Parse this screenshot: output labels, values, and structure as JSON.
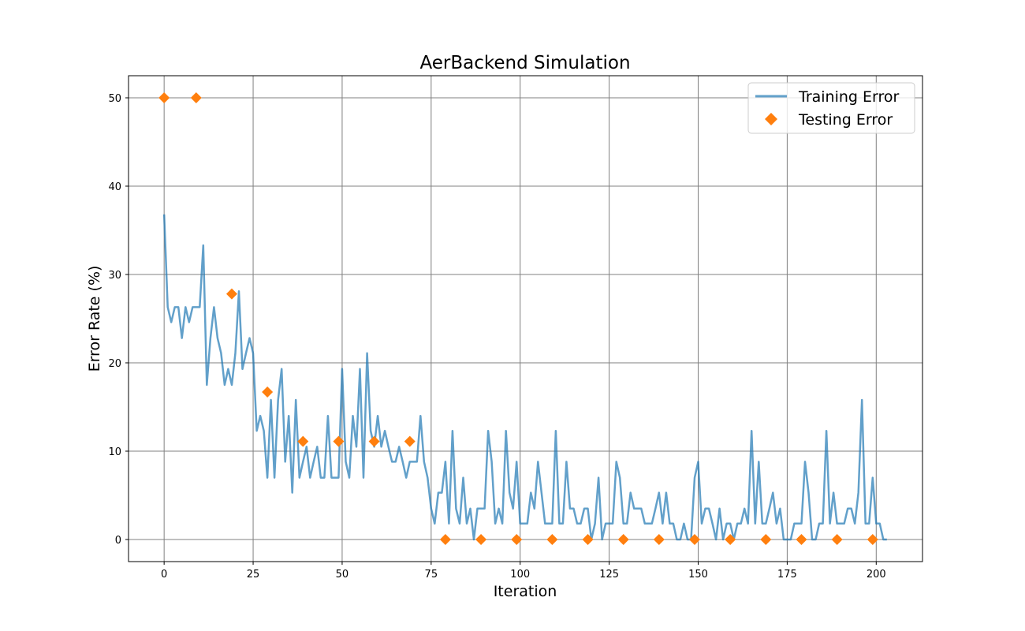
{
  "chart_data": {
    "type": "line",
    "title": "AerBackend Simulation",
    "xlabel": "Iteration",
    "ylabel": "Error Rate (%)",
    "xlim": [
      -10,
      213
    ],
    "ylim": [
      -2.5,
      52.5
    ],
    "xticks": [
      0,
      25,
      50,
      75,
      100,
      125,
      150,
      175,
      200
    ],
    "yticks": [
      0,
      10,
      20,
      30,
      40,
      50
    ],
    "grid": true,
    "legend": "top-right",
    "series": [
      {
        "name": "Training Error",
        "style": "line",
        "color": "#1f77b4",
        "x": [
          0,
          1,
          2,
          3,
          4,
          5,
          6,
          7,
          8,
          9,
          10,
          11,
          12,
          13,
          14,
          15,
          16,
          17,
          18,
          19,
          20,
          21,
          22,
          23,
          24,
          25,
          26,
          27,
          28,
          29,
          30,
          31,
          32,
          33,
          34,
          35,
          36,
          37,
          38,
          39,
          40,
          41,
          42,
          43,
          44,
          45,
          46,
          47,
          48,
          49,
          50,
          51,
          52,
          53,
          54,
          55,
          56,
          57,
          58,
          59,
          60,
          61,
          62,
          63,
          64,
          65,
          66,
          67,
          68,
          69,
          70,
          71,
          72,
          73,
          74,
          75,
          76,
          77,
          78,
          79,
          80,
          81,
          82,
          83,
          84,
          85,
          86,
          87,
          88,
          89,
          90,
          91,
          92,
          93,
          94,
          95,
          96,
          97,
          98,
          99,
          100,
          101,
          102,
          103,
          104,
          105,
          106,
          107,
          108,
          109,
          110,
          111,
          112,
          113,
          114,
          115,
          116,
          117,
          118,
          119,
          120,
          121,
          122,
          123,
          124,
          125,
          126,
          127,
          128,
          129,
          130,
          131,
          132,
          133,
          134,
          135,
          136,
          137,
          138,
          139,
          140,
          141,
          142,
          143,
          144,
          145,
          146,
          147,
          148,
          149,
          150,
          151,
          152,
          153,
          154,
          155,
          156,
          157,
          158,
          159,
          160,
          161,
          162,
          163,
          164,
          165,
          166,
          167,
          168,
          169,
          170,
          171,
          172,
          173,
          174,
          175,
          176,
          177,
          178,
          179,
          180,
          181,
          182,
          183,
          184,
          185,
          186,
          187,
          188,
          189,
          190,
          191,
          192,
          193,
          194,
          195,
          196,
          197,
          198,
          199,
          200,
          201,
          202,
          203
        ],
        "values": [
          36.8,
          26.3,
          24.6,
          26.3,
          26.3,
          22.8,
          26.3,
          24.6,
          26.3,
          26.3,
          26.3,
          33.3,
          17.5,
          22.8,
          26.3,
          22.8,
          21.1,
          17.5,
          19.3,
          17.5,
          21.1,
          28.1,
          19.3,
          21.1,
          22.8,
          21.1,
          12.3,
          14.0,
          12.3,
          7.0,
          15.8,
          7.0,
          15.8,
          19.3,
          8.8,
          14.0,
          5.3,
          15.8,
          7.0,
          8.8,
          10.5,
          7.0,
          8.8,
          10.5,
          7.0,
          7.0,
          14.0,
          7.0,
          7.0,
          7.0,
          19.3,
          8.8,
          7.0,
          14.0,
          10.5,
          19.3,
          7.0,
          21.1,
          12.3,
          10.5,
          14.0,
          10.5,
          12.3,
          10.5,
          8.8,
          8.8,
          10.5,
          8.8,
          7.0,
          8.8,
          8.8,
          8.8,
          14.0,
          8.8,
          7.0,
          3.5,
          1.8,
          5.3,
          5.3,
          8.8,
          1.8,
          12.3,
          3.5,
          1.8,
          7.0,
          1.8,
          3.5,
          0.0,
          3.5,
          3.5,
          3.5,
          12.3,
          8.8,
          1.8,
          3.5,
          1.8,
          12.3,
          5.3,
          3.5,
          8.8,
          1.8,
          1.8,
          1.8,
          5.3,
          3.5,
          8.8,
          5.3,
          1.8,
          1.8,
          1.8,
          12.3,
          1.8,
          1.8,
          8.8,
          3.5,
          3.5,
          1.8,
          1.8,
          3.5,
          3.5,
          0.0,
          1.8,
          7.0,
          0.0,
          1.8,
          1.8,
          1.8,
          8.8,
          7.0,
          1.8,
          1.8,
          5.3,
          3.5,
          3.5,
          3.5,
          1.8,
          1.8,
          1.8,
          3.5,
          5.3,
          1.8,
          5.3,
          1.8,
          1.8,
          0.0,
          0.0,
          1.8,
          0.0,
          0.0,
          7.0,
          8.8,
          1.8,
          3.5,
          3.5,
          1.8,
          0.0,
          3.5,
          0.0,
          1.8,
          1.8,
          0.0,
          1.8,
          1.8,
          3.5,
          1.8,
          12.3,
          1.8,
          8.8,
          1.8,
          1.8,
          3.5,
          5.3,
          1.8,
          3.5,
          0.0,
          0.0,
          0.0,
          1.8,
          1.8,
          1.8,
          8.8,
          5.3,
          0.0,
          0.0,
          1.8,
          1.8,
          12.3,
          1.8,
          5.3,
          1.8,
          1.8,
          1.8,
          3.5,
          3.5,
          1.8,
          5.3,
          15.8,
          1.8,
          1.8,
          7.0,
          1.8,
          1.8,
          0.0,
          0.0
        ]
      },
      {
        "name": "Testing Error",
        "style": "markers",
        "marker": "diamond",
        "color": "#ff7f0e",
        "x": [
          0,
          9,
          19,
          29,
          39,
          49,
          59,
          69,
          79,
          89,
          99,
          109,
          119,
          129,
          139,
          149,
          159,
          169,
          179,
          189,
          199
        ],
        "values": [
          50.0,
          50.0,
          27.8,
          16.7,
          11.1,
          11.1,
          11.1,
          11.1,
          0,
          0,
          0,
          0,
          0,
          0,
          0,
          0,
          0,
          0,
          0,
          0,
          0
        ]
      }
    ]
  }
}
